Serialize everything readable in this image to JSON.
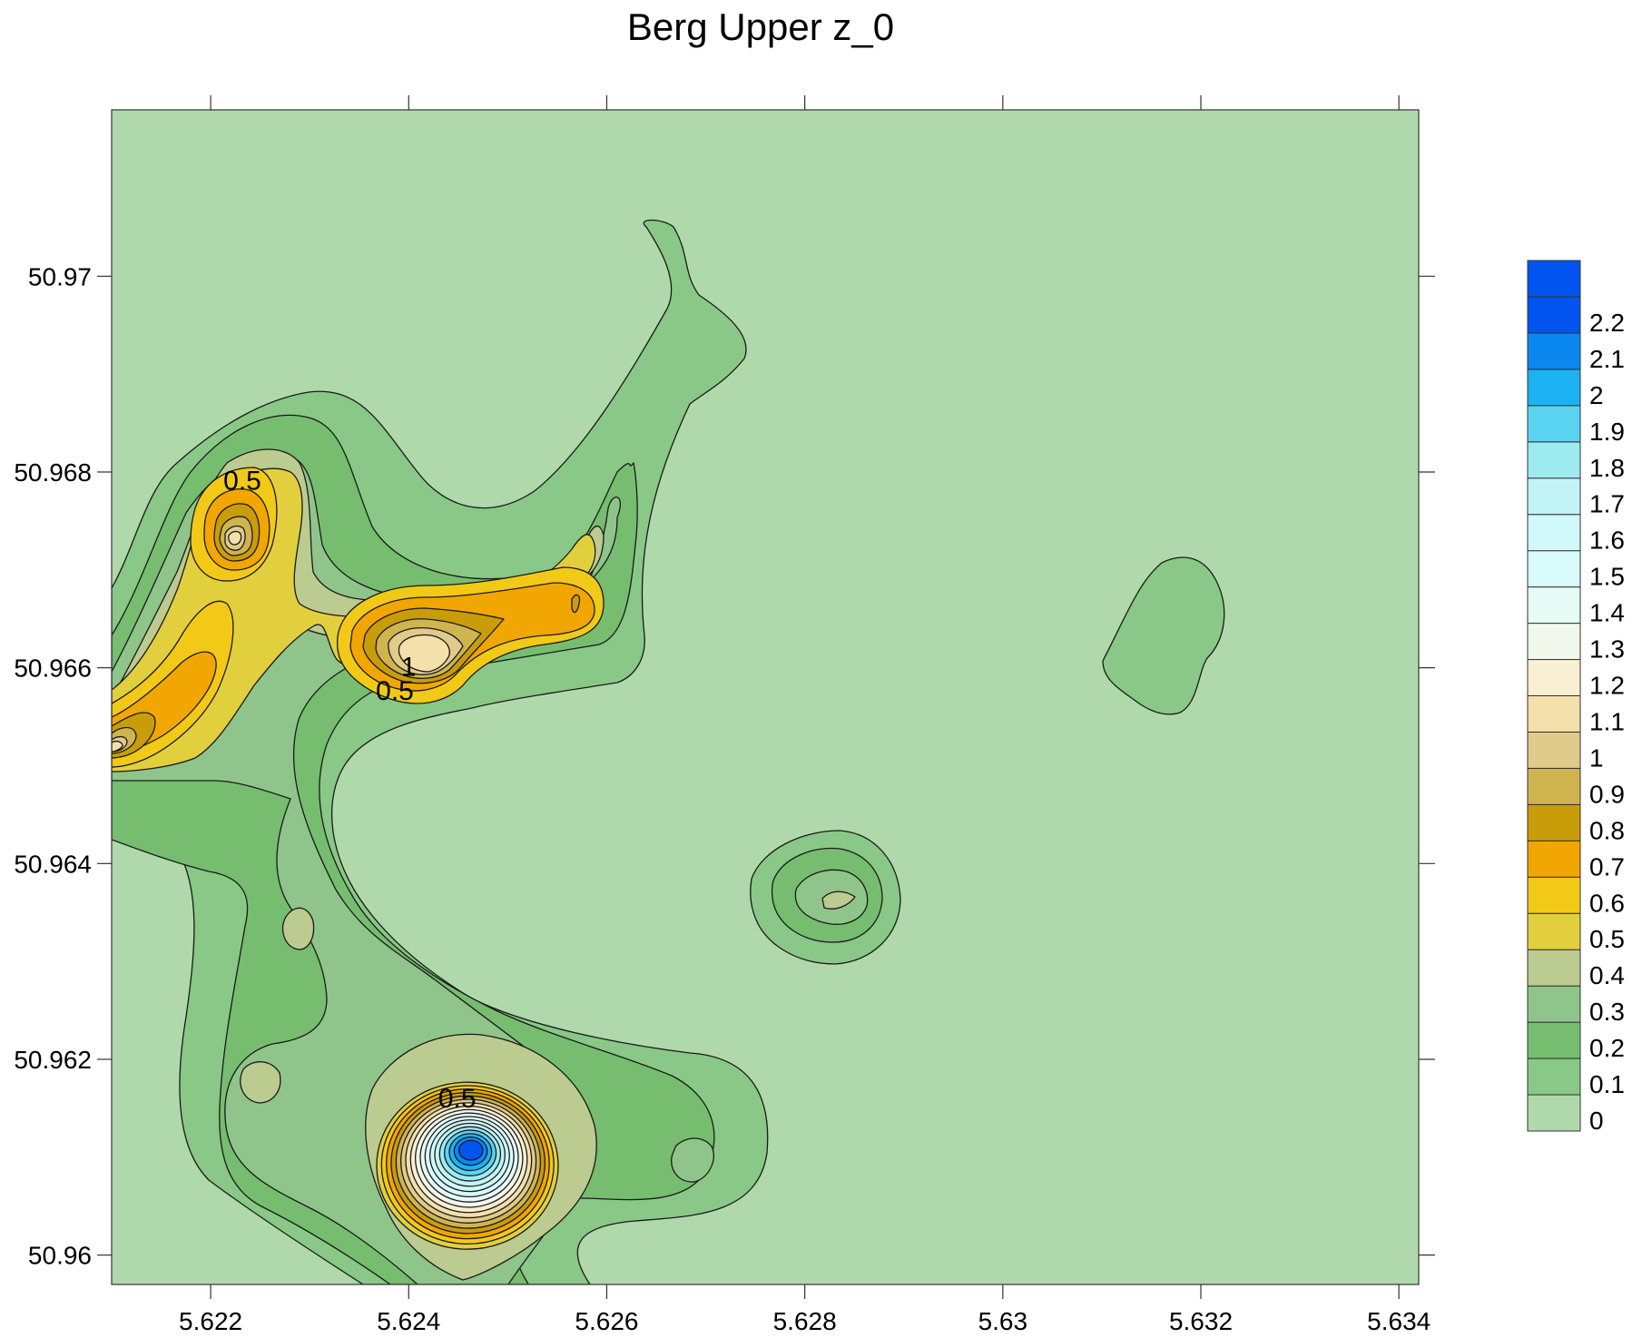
{
  "chart_data": {
    "type": "contour",
    "title": "Berg Upper z_0",
    "xlabel": "",
    "ylabel": "",
    "xlim": [
      5.621,
      5.6342
    ],
    "ylim": [
      50.9597,
      50.9717
    ],
    "x_ticks": [
      5.622,
      5.624,
      5.626,
      5.628,
      5.63,
      5.632,
      5.634
    ],
    "x_tick_labels": [
      "5.622",
      "5.624",
      "5.626",
      "5.628",
      "5.63",
      "5.632",
      "5.634"
    ],
    "y_ticks": [
      50.96,
      50.962,
      50.964,
      50.966,
      50.968,
      50.97
    ],
    "y_tick_labels": [
      "50.96",
      "50.962",
      "50.964",
      "50.966",
      "50.968",
      "50.97"
    ],
    "levels": [
      0,
      0.1,
      0.2,
      0.3,
      0.4,
      0.5,
      0.6,
      0.7,
      0.8,
      0.9,
      1,
      1.1,
      1.2,
      1.3,
      1.4,
      1.5,
      1.6,
      1.7,
      1.8,
      1.9,
      2,
      2.1,
      2.2
    ],
    "level_labels": [
      "0",
      "0.1",
      "0.2",
      "0.3",
      "0.4",
      "0.5",
      "0.6",
      "0.7",
      "0.8",
      "0.9",
      "1",
      "1.1",
      "1.2",
      "1.3",
      "1.4",
      "1.5",
      "1.6",
      "1.7",
      "1.8",
      "1.9",
      "2",
      "2.1",
      "2.2"
    ],
    "colors": [
      "#b0d9ab",
      "#89c886",
      "#76bd70",
      "#8fc58a",
      "#bccb8f",
      "#e2cf3e",
      "#f2c917",
      "#f2a602",
      "#c99c0a",
      "#cfb450",
      "#e1cb8b",
      "#f4e0ab",
      "#f9efd2",
      "#f1f7ea",
      "#e6fbf6",
      "#d8fafa",
      "#d1f9f9",
      "#c3f4f5",
      "#9eeaf1",
      "#5ad3f0",
      "#1db2f2",
      "#0b87f0",
      "#0254f0"
    ],
    "colorbar_top_color": "#0254f0",
    "contour_labels": [
      {
        "text": "0.5",
        "x": 5.62232,
        "y": 50.96782
      },
      {
        "text": "1",
        "x": 5.624,
        "y": 50.96592
      },
      {
        "text": "0.5",
        "x": 5.62386,
        "y": 50.96567
      },
      {
        "text": "0.5",
        "x": 5.62449,
        "y": 50.96151
      }
    ],
    "features": [
      {
        "kind": "peak",
        "x": 5.62463,
        "y": 50.96108,
        "value": 2.2
      },
      {
        "kind": "peak",
        "x": 5.62437,
        "y": 50.96607,
        "value": 1.2
      },
      {
        "kind": "peak",
        "x": 5.62217,
        "y": 50.9673,
        "value": 1.1
      },
      {
        "kind": "peak",
        "x": 5.62105,
        "y": 50.96507,
        "value": 1.2
      },
      {
        "kind": "peak",
        "x": 5.62842,
        "y": 50.9636,
        "value": 0.4
      },
      {
        "kind": "peak",
        "x": 5.62287,
        "y": 50.9633,
        "value": 0.4
      },
      {
        "kind": "peak",
        "x": 5.62249,
        "y": 50.9615,
        "value": 0.4
      },
      {
        "kind": "peak",
        "x": 5.62696,
        "y": 50.96087,
        "value": 0.35
      },
      {
        "kind": "patch",
        "x": 5.63172,
        "y": 50.96615,
        "value": 0.1
      }
    ]
  }
}
